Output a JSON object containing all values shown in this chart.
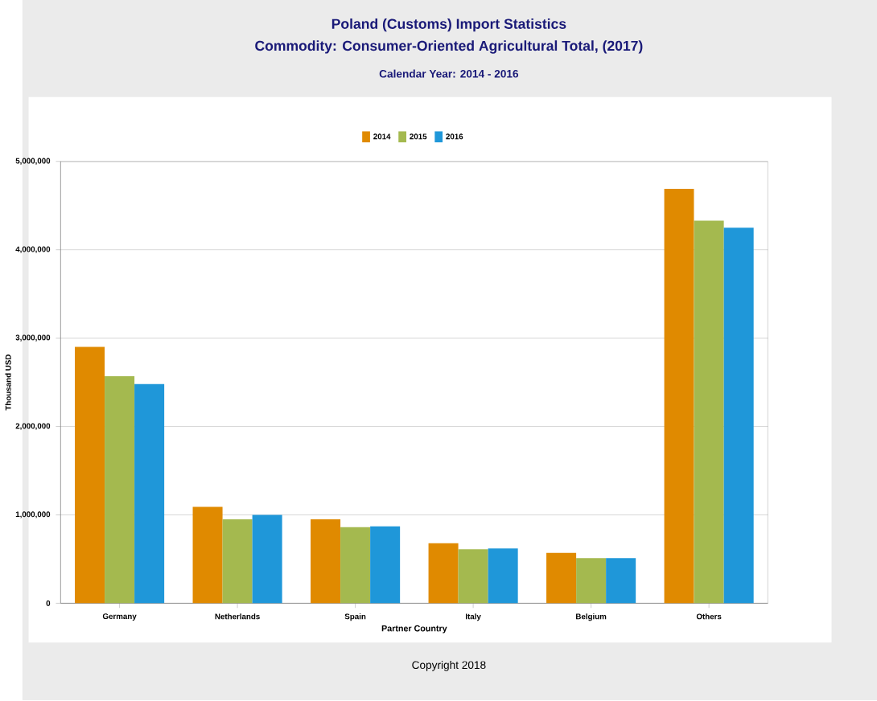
{
  "chart_data": {
    "type": "bar",
    "title": "Poland (Customs) Import Statistics",
    "subtitle": "Commodity: Consumer-Oriented Agricultural Total, (2017)",
    "annotations": [
      "Calendar Year: 2014 - 2016",
      "Copyright 2018"
    ],
    "xlabel": "Partner Country",
    "ylabel": "Thousand USD",
    "categories": [
      "Germany",
      "Netherlands",
      "Spain",
      "Italy",
      "Belgium",
      "Others"
    ],
    "series": [
      {
        "name": "2014",
        "color": "#e08a00",
        "values": [
          2900000,
          1090000,
          950000,
          680000,
          570000,
          4690000
        ]
      },
      {
        "name": "2015",
        "color": "#a4b94f",
        "values": [
          2570000,
          950000,
          860000,
          610000,
          510000,
          4330000
        ]
      },
      {
        "name": "2016",
        "color": "#1f97d9",
        "values": [
          2480000,
          1000000,
          870000,
          620000,
          510000,
          4250000
        ]
      }
    ],
    "ylim": [
      0,
      5000000
    ],
    "yticks": [
      {
        "value": 0,
        "label": "0"
      },
      {
        "value": 1000000,
        "label": "1,000,000"
      },
      {
        "value": 2000000,
        "label": "2,000,000"
      },
      {
        "value": 3000000,
        "label": "3,000,000"
      },
      {
        "value": 4000000,
        "label": "4,000,000"
      },
      {
        "value": 5000000,
        "label": "5,000,000"
      }
    ],
    "grid": "y",
    "legend": "top"
  }
}
